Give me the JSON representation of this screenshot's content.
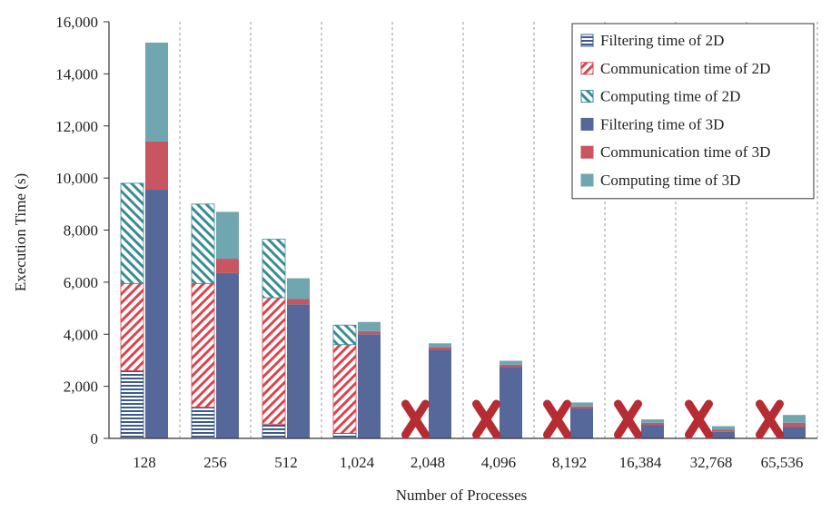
{
  "chart_data": {
    "type": "bar",
    "stacked": true,
    "title": "",
    "xlabel": "Number of Processes",
    "ylabel": "Execution Time (s)",
    "ylim": [
      0,
      16000
    ],
    "yticks": [
      "0",
      "2,000",
      "4,000",
      "6,000",
      "8,000",
      "10,000",
      "12,000",
      "14,000",
      "16,000"
    ],
    "ytick_values": [
      0,
      2000,
      4000,
      6000,
      8000,
      10000,
      12000,
      14000,
      16000
    ],
    "categories": [
      "128",
      "256",
      "512",
      "1,024",
      "2,048",
      "4,096",
      "8,192",
      "16,384",
      "32,768",
      "65,536"
    ],
    "grid": "vertical dashed separators between categories",
    "legend_position": "top-right",
    "groups": [
      {
        "name": "2D",
        "unavailable": [
          false,
          false,
          false,
          false,
          true,
          true,
          true,
          true,
          true,
          true
        ],
        "series": [
          {
            "name": "Filtering time of 2D",
            "color": "#3d5a8a",
            "pattern": "horizontal-lines",
            "values": [
              2600,
              1200,
              550,
              200,
              null,
              null,
              null,
              null,
              null,
              null
            ]
          },
          {
            "name": "Communication time of 2D",
            "color": "#d9464f",
            "pattern": "diagonal-lines",
            "values": [
              3350,
              4750,
              4850,
              3400,
              null,
              null,
              null,
              null,
              null,
              null
            ]
          },
          {
            "name": "Computing time of 2D",
            "color": "#3c8c94",
            "pattern": "diagonal-lines-reverse",
            "values": [
              3850,
              3050,
              2250,
              750,
              null,
              null,
              null,
              null,
              null,
              null
            ]
          }
        ]
      },
      {
        "name": "3D",
        "unavailable": [
          false,
          false,
          false,
          false,
          false,
          false,
          false,
          false,
          false,
          false
        ],
        "series": [
          {
            "name": "Filtering time of 3D",
            "color": "#56679a",
            "pattern": "solid",
            "values": [
              9550,
              6350,
              5150,
              4000,
              3400,
              2750,
              1150,
              520,
              250,
              450
            ]
          },
          {
            "name": "Communication time of 3D",
            "color": "#c8555f",
            "pattern": "solid",
            "values": [
              1850,
              550,
              200,
              120,
              100,
              80,
              80,
              80,
              80,
              150
            ]
          },
          {
            "name": "Computing time of 3D",
            "color": "#6fa6b0",
            "pattern": "solid",
            "values": [
              3800,
              1800,
              800,
              350,
              150,
              150,
              150,
              130,
              140,
              300
            ]
          }
        ]
      }
    ],
    "unavailable_marker_color": "#b52c32"
  }
}
